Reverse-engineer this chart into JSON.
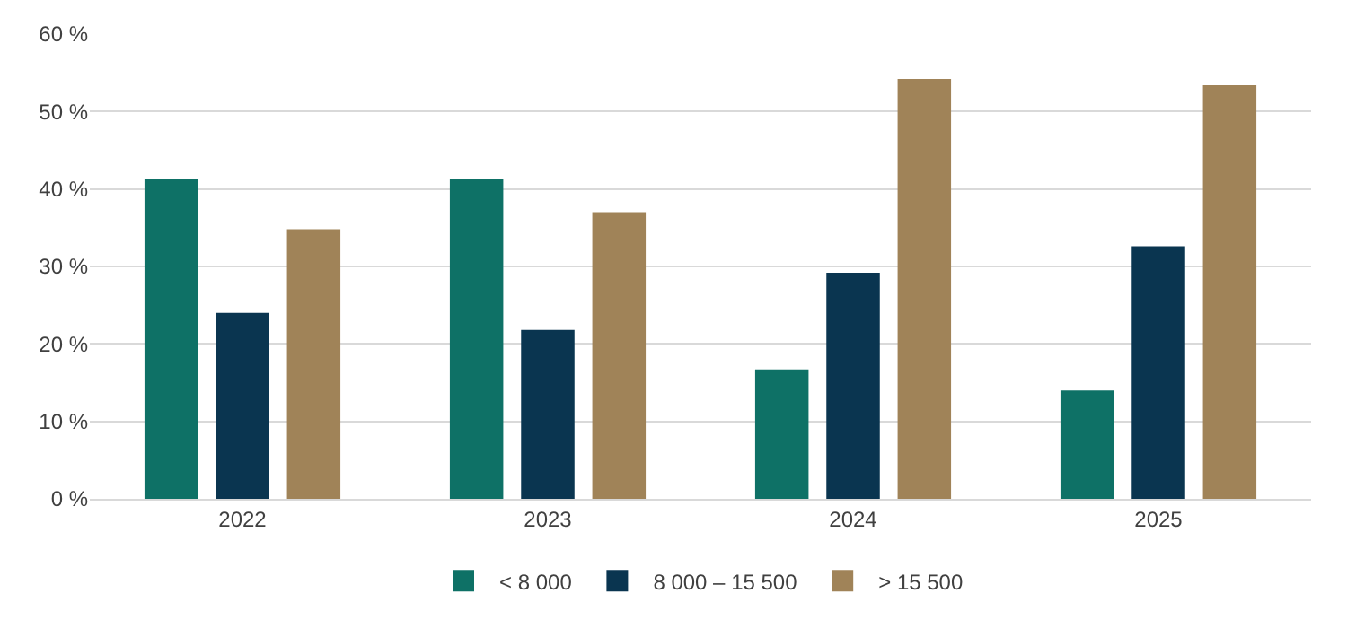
{
  "chart_data": {
    "type": "bar",
    "categories": [
      "2022",
      "2023",
      "2024",
      "2025"
    ],
    "series": [
      {
        "name": "< 8 000",
        "color": "#0e7166",
        "values": [
          41.3,
          41.3,
          16.7,
          14.0
        ]
      },
      {
        "name": "8 000 – 15 500",
        "color": "#0a3550",
        "values": [
          24.0,
          21.8,
          29.2,
          32.6
        ]
      },
      {
        "name": "> 15 500",
        "color": "#a08358",
        "values": [
          34.8,
          37.0,
          54.2,
          53.4
        ]
      }
    ],
    "ylim": [
      0,
      60
    ],
    "yticks": [
      {
        "value": 0,
        "label": "0 %"
      },
      {
        "value": 10,
        "label": "10 %"
      },
      {
        "value": 20,
        "label": "20 %"
      },
      {
        "value": 30,
        "label": "30 %"
      },
      {
        "value": 40,
        "label": "40 %"
      },
      {
        "value": 50,
        "label": "50 %"
      },
      {
        "value": 60,
        "label": "60 %"
      }
    ],
    "grid": "y",
    "legend": "bottom"
  }
}
